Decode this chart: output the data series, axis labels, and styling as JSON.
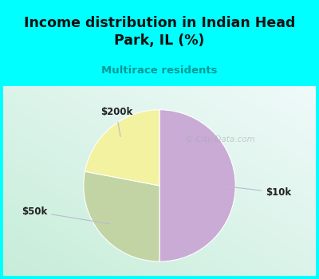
{
  "title": "Income distribution in Indian Head\nPark, IL (%)",
  "subtitle": "Multirace residents",
  "slices": [
    {
      "label": "$10k",
      "value": 50,
      "color": "#C9ABD6"
    },
    {
      "label": "$50k",
      "value": 28,
      "color": "#C2D4A4"
    },
    {
      "label": "$200k",
      "value": 22,
      "color": "#F2F2A0"
    }
  ],
  "background_color": "#00FFFF",
  "title_color": "#111111",
  "subtitle_color": "#009999",
  "watermark": "© City-Data.com",
  "label_line_color": "#BBBBCC",
  "startangle": 90,
  "label_coords": {
    "$10k": {
      "text": [
        1.38,
        -0.08
      ],
      "wedge_r": 0.72
    },
    "$200k": {
      "text": [
        -0.5,
        0.85
      ],
      "wedge_r": 0.72
    },
    "$50k": {
      "text": [
        -1.45,
        -0.3
      ],
      "wedge_r": 0.72
    }
  },
  "grad_color_tl": [
    0.94,
    0.98,
    0.98
  ],
  "grad_color_br": [
    0.78,
    0.93,
    0.85
  ]
}
